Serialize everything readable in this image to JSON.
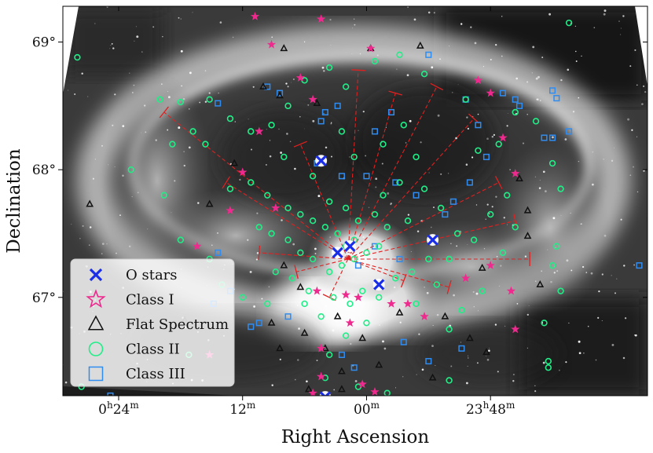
{
  "chart_data": {
    "type": "scatter",
    "xlabel": "Right Ascension",
    "ylabel": "Declination",
    "x_unit": "degrees RA (negative = west of 0h)",
    "xlim": [
      7.35,
      -6.8
    ],
    "ylim": [
      66.23,
      69.28
    ],
    "background": "grayscale infrared image (nebula)",
    "x_ticks": [
      {
        "value": 6,
        "label_main": "0",
        "label_h": "h",
        "label_mid": "24",
        "label_m": "m"
      },
      {
        "value": 3,
        "label_main": "12",
        "label_m": "m"
      },
      {
        "value": 0,
        "label_main": "00",
        "label_m": "m"
      },
      {
        "value": -3,
        "label_main": "23",
        "label_h": "h",
        "label_mid": "48",
        "label_m": "m"
      }
    ],
    "y_ticks": [
      {
        "value": 69,
        "label": "69°"
      },
      {
        "value": 68,
        "label": "68°"
      },
      {
        "value": 67,
        "label": "67°"
      }
    ],
    "legend_position": "lower-left",
    "series": [
      {
        "name": "O stars",
        "marker": "x",
        "color": "#1a2ee8",
        "points": [
          [
            1.1,
            68.07
          ],
          [
            0.7,
            67.35
          ],
          [
            0.4,
            67.4
          ],
          [
            -0.3,
            67.1
          ],
          [
            -1.6,
            67.45
          ],
          [
            1.0,
            66.22
          ]
        ]
      },
      {
        "name": "Class I",
        "marker": "star",
        "color": "#ee2a8e",
        "points": [
          [
            2.7,
            69.2
          ],
          [
            1.1,
            69.18
          ],
          [
            2.3,
            68.98
          ],
          [
            -0.1,
            68.95
          ],
          [
            1.6,
            68.72
          ],
          [
            -2.7,
            68.7
          ],
          [
            -3.0,
            68.6
          ],
          [
            1.3,
            68.55
          ],
          [
            2.6,
            68.3
          ],
          [
            -3.3,
            68.25
          ],
          [
            3.0,
            67.98
          ],
          [
            -3.6,
            67.97
          ],
          [
            2.2,
            67.7
          ],
          [
            3.3,
            67.68
          ],
          [
            4.1,
            67.4
          ],
          [
            -3.0,
            67.25
          ],
          [
            0.5,
            67.02
          ],
          [
            1.2,
            67.05
          ],
          [
            0.2,
            67.0
          ],
          [
            -2.4,
            67.15
          ],
          [
            -3.5,
            67.05
          ],
          [
            -1.0,
            66.95
          ],
          [
            1.1,
            66.6
          ],
          [
            0.4,
            66.8
          ],
          [
            -0.6,
            66.95
          ],
          [
            -1.4,
            66.85
          ],
          [
            -3.6,
            66.75
          ],
          [
            3.8,
            66.55
          ],
          [
            1.1,
            66.38
          ],
          [
            1.3,
            66.25
          ],
          [
            0.1,
            66.32
          ],
          [
            -0.2,
            66.26
          ]
        ]
      },
      {
        "name": "Flat Spectrum",
        "marker": "triangle",
        "color": "#111111",
        "points": [
          [
            2.0,
            68.95
          ],
          [
            -0.1,
            68.95
          ],
          [
            -1.3,
            68.97
          ],
          [
            2.5,
            68.65
          ],
          [
            2.1,
            68.58
          ],
          [
            1.2,
            68.52
          ],
          [
            3.2,
            68.05
          ],
          [
            6.7,
            67.73
          ],
          [
            3.8,
            67.73
          ],
          [
            -3.7,
            67.93
          ],
          [
            -3.9,
            67.68
          ],
          [
            -3.9,
            67.48
          ],
          [
            -2.8,
            67.23
          ],
          [
            -4.2,
            67.1
          ],
          [
            2.0,
            67.25
          ],
          [
            1.6,
            67.08
          ],
          [
            0.7,
            66.85
          ],
          [
            -0.8,
            66.88
          ],
          [
            -1.9,
            66.85
          ],
          [
            2.3,
            66.8
          ],
          [
            1.5,
            66.72
          ],
          [
            1.0,
            66.6
          ],
          [
            0.1,
            66.68
          ],
          [
            -2.5,
            66.68
          ],
          [
            -2.9,
            66.57
          ],
          [
            2.1,
            66.6
          ],
          [
            0.6,
            66.42
          ],
          [
            -0.3,
            66.47
          ],
          [
            -1.6,
            66.37
          ],
          [
            4.4,
            66.82
          ],
          [
            0.6,
            66.28
          ],
          [
            1.4,
            66.28
          ]
        ]
      },
      {
        "name": "Class II",
        "marker": "circle",
        "color": "#22ee88",
        "points": [
          [
            7.0,
            68.88
          ],
          [
            -4.9,
            69.15
          ],
          [
            5.0,
            68.55
          ],
          [
            4.5,
            68.53
          ],
          [
            3.8,
            68.55
          ],
          [
            3.3,
            68.4
          ],
          [
            2.8,
            68.3
          ],
          [
            2.3,
            68.35
          ],
          [
            1.9,
            68.5
          ],
          [
            1.5,
            68.7
          ],
          [
            0.9,
            68.8
          ],
          [
            0.5,
            68.65
          ],
          [
            -0.2,
            68.85
          ],
          [
            -0.8,
            68.9
          ],
          [
            -1.4,
            68.75
          ],
          [
            -2.4,
            68.55
          ],
          [
            -3.6,
            68.45
          ],
          [
            -4.1,
            68.38
          ],
          [
            -3.2,
            68.2
          ],
          [
            -2.7,
            68.15
          ],
          [
            -4.5,
            68.05
          ],
          [
            -4.7,
            67.85
          ],
          [
            -4.6,
            67.4
          ],
          [
            -4.5,
            67.25
          ],
          [
            -4.7,
            67.05
          ],
          [
            -4.3,
            66.8
          ],
          [
            -4.4,
            66.5
          ],
          [
            -4.4,
            66.45
          ],
          [
            5.7,
            68.0
          ],
          [
            4.9,
            67.8
          ],
          [
            4.5,
            67.45
          ],
          [
            3.8,
            67.3
          ],
          [
            3.5,
            67.1
          ],
          [
            3.0,
            67.0
          ],
          [
            4.3,
            66.55
          ],
          [
            -0.5,
            66.25
          ],
          [
            1.0,
            66.37
          ],
          [
            0.2,
            66.3
          ],
          [
            -2.0,
            66.35
          ],
          [
            6.9,
            66.3
          ],
          [
            2.0,
            68.1
          ],
          [
            1.3,
            67.95
          ],
          [
            0.9,
            67.75
          ],
          [
            0.5,
            67.7
          ],
          [
            0.2,
            67.6
          ],
          [
            -0.2,
            67.65
          ],
          [
            -0.5,
            67.55
          ],
          [
            -1.0,
            67.6
          ],
          [
            -1.4,
            67.85
          ],
          [
            -1.8,
            67.7
          ],
          [
            -2.2,
            67.5
          ],
          [
            -2.6,
            67.45
          ],
          [
            -2.0,
            67.3
          ],
          [
            -1.5,
            67.3
          ],
          [
            -1.1,
            67.2
          ],
          [
            -0.7,
            67.15
          ],
          [
            0.3,
            67.3
          ],
          [
            0.6,
            67.25
          ],
          [
            0.9,
            67.2
          ],
          [
            1.3,
            67.3
          ],
          [
            1.6,
            67.35
          ],
          [
            1.9,
            67.45
          ],
          [
            2.3,
            67.5
          ],
          [
            2.6,
            67.55
          ],
          [
            2.2,
            67.2
          ],
          [
            1.8,
            67.15
          ],
          [
            1.4,
            67.05
          ],
          [
            0.8,
            67.0
          ],
          [
            0.4,
            66.95
          ],
          [
            0.1,
            67.05
          ],
          [
            -0.3,
            67.0
          ],
          [
            0.5,
            67.4
          ],
          [
            0.3,
            67.45
          ],
          [
            0.0,
            67.35
          ],
          [
            -0.3,
            67.4
          ],
          [
            0.7,
            67.5
          ],
          [
            1.0,
            67.55
          ],
          [
            1.3,
            67.6
          ],
          [
            1.6,
            67.65
          ],
          [
            1.9,
            67.7
          ],
          [
            2.4,
            67.8
          ],
          [
            2.8,
            67.9
          ],
          [
            3.3,
            67.85
          ],
          [
            3.9,
            68.2
          ],
          [
            4.2,
            68.3
          ],
          [
            4.7,
            68.2
          ],
          [
            0.6,
            68.3
          ],
          [
            0.3,
            68.1
          ],
          [
            -0.4,
            68.2
          ],
          [
            -0.9,
            68.35
          ],
          [
            -1.2,
            68.1
          ],
          [
            -0.8,
            67.9
          ],
          [
            -0.4,
            67.8
          ],
          [
            -1.7,
            67.1
          ],
          [
            -1.2,
            66.95
          ],
          [
            -2.3,
            66.9
          ],
          [
            -2.0,
            66.75
          ],
          [
            -2.8,
            67.05
          ],
          [
            -3.3,
            67.35
          ],
          [
            -3.6,
            67.55
          ],
          [
            -3.4,
            67.8
          ],
          [
            -3.0,
            67.65
          ],
          [
            0.0,
            66.8
          ],
          [
            0.5,
            66.7
          ],
          [
            1.1,
            66.85
          ],
          [
            1.5,
            66.95
          ],
          [
            2.4,
            66.95
          ],
          [
            0.9,
            66.55
          ]
        ]
      },
      {
        "name": "Class III",
        "marker": "square",
        "color": "#2f8cf0",
        "points": [
          [
            6.2,
            66.23
          ],
          [
            3.6,
            68.52
          ],
          [
            2.4,
            68.65
          ],
          [
            2.1,
            68.6
          ],
          [
            1.0,
            68.45
          ],
          [
            1.1,
            68.38
          ],
          [
            0.7,
            68.5
          ],
          [
            -0.2,
            68.3
          ],
          [
            -0.6,
            68.45
          ],
          [
            -1.5,
            68.9
          ],
          [
            -2.4,
            68.55
          ],
          [
            -2.7,
            68.35
          ],
          [
            -3.3,
            68.6
          ],
          [
            -3.6,
            68.55
          ],
          [
            -3.7,
            68.5
          ],
          [
            -4.5,
            68.62
          ],
          [
            -4.6,
            68.56
          ],
          [
            -4.3,
            68.25
          ],
          [
            -4.5,
            68.25
          ],
          [
            -4.9,
            68.3
          ],
          [
            -2.9,
            68.1
          ],
          [
            -2.5,
            67.9
          ],
          [
            -2.1,
            67.75
          ],
          [
            -1.9,
            67.65
          ],
          [
            -1.2,
            67.8
          ],
          [
            -0.7,
            67.9
          ],
          [
            0.0,
            67.95
          ],
          [
            0.6,
            67.95
          ],
          [
            1.2,
            68.05
          ],
          [
            0.2,
            67.25
          ],
          [
            -0.2,
            67.4
          ],
          [
            -0.8,
            67.3
          ],
          [
            3.6,
            67.35
          ],
          [
            3.3,
            67.05
          ],
          [
            3.7,
            66.95
          ],
          [
            2.6,
            66.8
          ],
          [
            2.8,
            66.77
          ],
          [
            1.9,
            66.85
          ],
          [
            -6.6,
            67.25
          ],
          [
            -0.9,
            66.65
          ],
          [
            -1.5,
            66.5
          ],
          [
            -2.3,
            66.6
          ],
          [
            0.6,
            66.55
          ],
          [
            0.3,
            66.45
          ]
        ]
      }
    ],
    "field_of_view_vectors": {
      "description": "dashed red lines radiating from the central cluster with short bars at their ends",
      "color": "#e02020",
      "origin": [
        0.45,
        67.3
      ],
      "endpoints": [
        [
          4.9,
          68.45
        ],
        [
          0.2,
          68.78
        ],
        [
          -1.7,
          68.65
        ],
        [
          -2.6,
          68.4
        ],
        [
          -3.2,
          67.9
        ],
        [
          -3.6,
          67.6
        ],
        [
          -3.95,
          67.3
        ],
        [
          -2.0,
          67.08
        ],
        [
          -0.9,
          67.13
        ],
        [
          0.9,
          67.0
        ],
        [
          1.7,
          67.2
        ],
        [
          2.6,
          67.35
        ],
        [
          3.4,
          67.9
        ],
        [
          1.6,
          68.2
        ],
        [
          -0.7,
          68.6
        ]
      ]
    }
  }
}
